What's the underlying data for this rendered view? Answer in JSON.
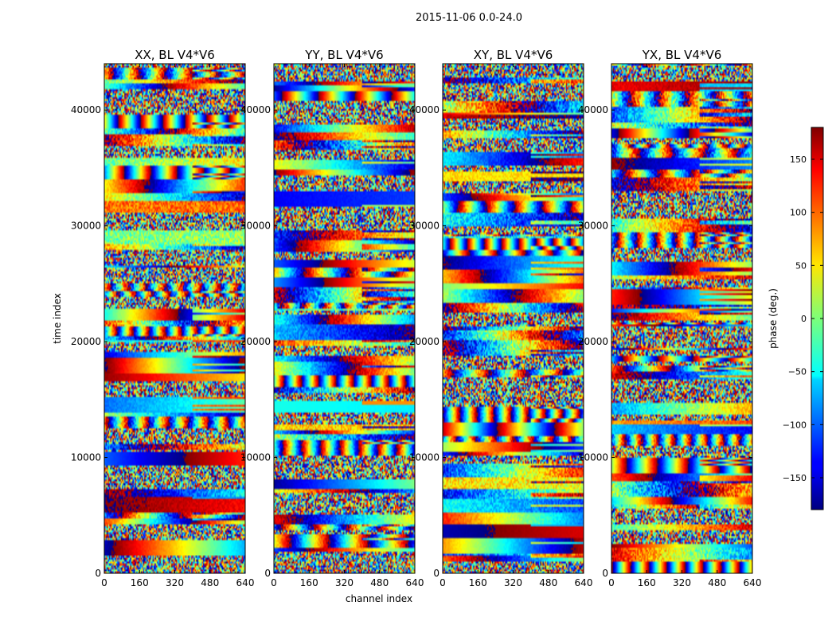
{
  "figure": {
    "title": "2015-11-06 0.0-24.0",
    "xlabel": "channel index",
    "ylabel": "time index"
  },
  "chart_data": [
    {
      "type": "heatmap",
      "title": "XX, BL V4*V6",
      "xlim": [
        0,
        640
      ],
      "ylim": [
        0,
        44000
      ],
      "xticks": [
        0,
        160,
        320,
        480,
        640
      ],
      "yticks": [
        0,
        10000,
        20000,
        30000,
        40000
      ],
      "ytick_labels": [
        "0",
        "10000",
        "20000",
        "30000",
        "40000"
      ]
    },
    {
      "type": "heatmap",
      "title": "YY, BL V4*V6",
      "xlim": [
        0,
        640
      ],
      "ylim": [
        0,
        44000
      ],
      "xticks": [
        0,
        160,
        320,
        480,
        640
      ],
      "yticks": [
        0,
        10000,
        20000,
        30000,
        40000
      ],
      "ytick_labels": [
        "0",
        "10000",
        "20000",
        "30000",
        "40000"
      ]
    },
    {
      "type": "heatmap",
      "title": "XY, BL V4*V6",
      "xlim": [
        0,
        640
      ],
      "ylim": [
        0,
        44000
      ],
      "xticks": [
        0,
        160,
        320,
        480,
        640
      ],
      "yticks": [
        0,
        10000,
        20000,
        30000,
        40000
      ],
      "ytick_labels": [
        "0",
        "10000",
        "20000",
        "30000",
        "40000"
      ]
    },
    {
      "type": "heatmap",
      "title": "YX, BL V4*V6",
      "xlim": [
        0,
        640
      ],
      "ylim": [
        0,
        44000
      ],
      "xticks": [
        0,
        160,
        320,
        480,
        640
      ],
      "yticks": [
        0,
        10000,
        20000,
        30000,
        40000
      ],
      "ytick_labels": [
        "0",
        "10000",
        "20000",
        "30000",
        "40000"
      ]
    }
  ],
  "colorbar": {
    "label": "phase (deg.)",
    "range": [
      -180,
      180
    ],
    "ticks": [
      150,
      100,
      50,
      0,
      -50,
      -100,
      -150
    ],
    "tick_labels": [
      "150",
      "100",
      "50",
      "0",
      "−50",
      "−100",
      "−150"
    ],
    "colormap": "jet"
  }
}
